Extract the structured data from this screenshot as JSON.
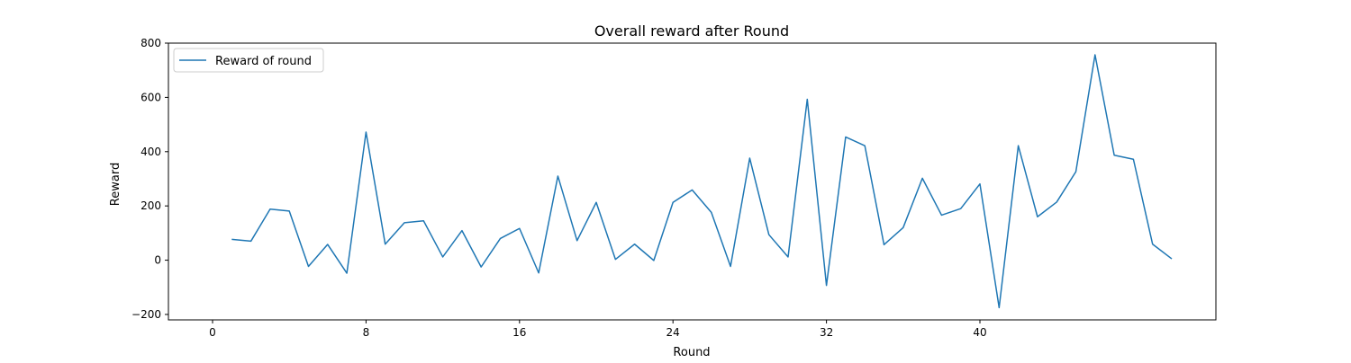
{
  "chart_data": {
    "type": "line",
    "title": "Overall reward after Round",
    "xlabel": "Round",
    "ylabel": "Reward",
    "xlim": [
      -2.3,
      52.3
    ],
    "ylim": [
      -220,
      800
    ],
    "xticks": [
      0,
      8,
      16,
      24,
      32,
      40
    ],
    "yticks": [
      -200,
      0,
      200,
      400,
      600,
      800
    ],
    "grid": false,
    "legend_position": "top-left",
    "series": [
      {
        "name": "Reward of round",
        "color": "#1f77b4",
        "x": [
          1,
          2,
          3,
          4,
          5,
          6,
          7,
          8,
          9,
          10,
          11,
          12,
          13,
          14,
          15,
          16,
          17,
          18,
          19,
          20,
          21,
          22,
          23,
          24,
          25,
          26,
          27,
          28,
          29,
          30,
          31,
          32,
          33,
          34,
          35,
          36,
          37,
          38,
          39,
          40,
          41,
          42,
          43,
          44,
          45,
          46,
          47,
          48,
          49,
          50
        ],
        "y": [
          77,
          70,
          188,
          181,
          -23,
          58,
          -48,
          472,
          59,
          138,
          145,
          12,
          109,
          -25,
          80,
          117,
          -47,
          310,
          72,
          213,
          3,
          59,
          -1,
          213,
          259,
          176,
          -23,
          376,
          94,
          12,
          593,
          -93,
          454,
          422,
          57,
          120,
          302,
          166,
          190,
          281,
          -175,
          422,
          160,
          214,
          326,
          757,
          387,
          372,
          59,
          5
        ]
      }
    ]
  }
}
